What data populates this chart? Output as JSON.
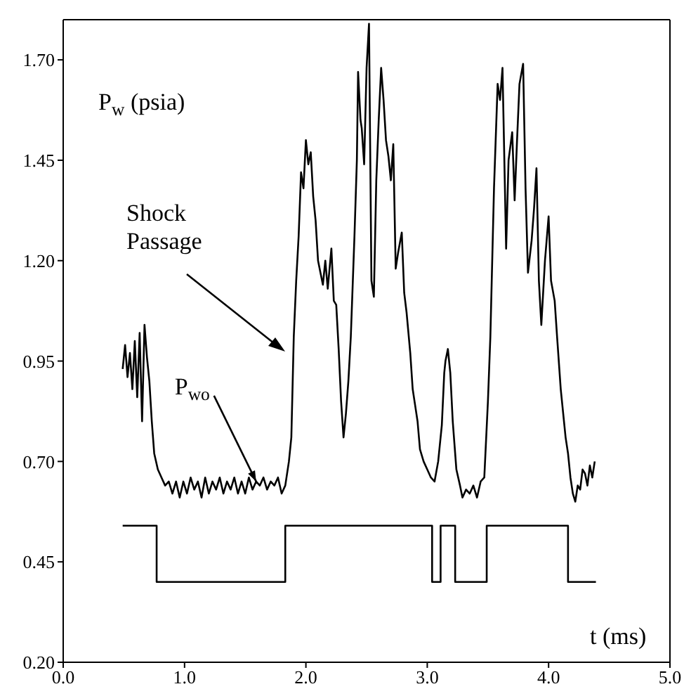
{
  "chart_data": {
    "type": "line",
    "xlabel": "t (ms)",
    "ylabel": "P$_{w}$ (psia)",
    "xlim": [
      0,
      5
    ],
    "ylim": [
      0.2,
      1.8
    ],
    "xticks": [
      {
        "value": 0,
        "label": "0.0"
      },
      {
        "value": 1,
        "label": "1.0"
      },
      {
        "value": 2,
        "label": "2.0"
      },
      {
        "value": 3,
        "label": "3.0"
      },
      {
        "value": 4,
        "label": "4.0"
      },
      {
        "value": 5,
        "label": "5.0"
      }
    ],
    "yticks": [
      {
        "value": 0.2,
        "label": "0.20"
      },
      {
        "value": 0.45,
        "label": "0.45"
      },
      {
        "value": 0.7,
        "label": "0.70"
      },
      {
        "value": 0.95,
        "label": "0.95"
      },
      {
        "value": 1.2,
        "label": "1.20"
      },
      {
        "value": 1.45,
        "label": "1.45"
      },
      {
        "value": 1.7,
        "label": "1.70"
      }
    ],
    "grid": false,
    "marker": "none",
    "line_style": "solid",
    "annotations": [
      "Shock Passage",
      {
        "text": "P$_{wo}$",
        "x": 1.59,
        "y": 0.65
      }
    ],
    "series": [
      {
        "type": "line",
        "color": "#000000",
        "x": [
          0.49,
          0.51,
          0.53,
          0.55,
          0.57,
          0.59,
          0.61,
          0.63,
          0.65,
          0.67,
          0.69,
          0.71,
          0.73,
          0.75,
          0.78,
          0.81,
          0.84,
          0.87,
          0.9,
          0.93,
          0.96,
          0.99,
          1.02,
          1.05,
          1.08,
          1.11,
          1.14,
          1.17,
          1.2,
          1.23,
          1.26,
          1.29,
          1.32,
          1.35,
          1.38,
          1.41,
          1.44,
          1.47,
          1.5,
          1.53,
          1.56,
          1.59,
          1.62,
          1.65,
          1.68,
          1.71,
          1.74,
          1.77,
          1.8,
          1.83,
          1.86,
          1.88,
          1.9,
          1.92,
          1.94,
          1.96,
          1.98,
          2.0,
          2.02,
          2.04,
          2.06,
          2.08,
          2.1,
          2.12,
          2.14,
          2.16,
          2.18,
          2.21,
          2.23,
          2.25,
          2.27,
          2.29,
          2.31,
          2.33,
          2.35,
          2.37,
          2.4,
          2.42,
          2.43,
          2.45,
          2.46,
          2.48,
          2.5,
          2.52,
          2.54,
          2.56,
          2.58,
          2.6,
          2.62,
          2.64,
          2.66,
          2.68,
          2.7,
          2.72,
          2.74,
          2.76,
          2.79,
          2.81,
          2.83,
          2.86,
          2.88,
          2.9,
          2.92,
          2.94,
          2.97,
          3.0,
          3.03,
          3.06,
          3.09,
          3.12,
          3.14,
          3.15,
          3.17,
          3.19,
          3.21,
          3.24,
          3.27,
          3.29,
          3.32,
          3.35,
          3.38,
          3.41,
          3.44,
          3.47,
          3.5,
          3.52,
          3.55,
          3.58,
          3.6,
          3.62,
          3.65,
          3.67,
          3.7,
          3.72,
          3.74,
          3.76,
          3.79,
          3.81,
          3.83,
          3.86,
          3.88,
          3.9,
          3.92,
          3.94,
          3.97,
          4.0,
          4.02,
          4.05,
          4.07,
          4.1,
          4.12,
          4.14,
          4.16,
          4.18,
          4.2,
          4.22,
          4.24,
          4.26,
          4.28,
          4.3,
          4.32,
          4.34,
          4.36,
          4.38
        ],
        "values": [
          0.93,
          0.99,
          0.91,
          0.97,
          0.88,
          1.0,
          0.86,
          1.02,
          0.8,
          1.04,
          0.96,
          0.9,
          0.8,
          0.72,
          0.68,
          0.66,
          0.64,
          0.65,
          0.62,
          0.65,
          0.61,
          0.65,
          0.62,
          0.66,
          0.63,
          0.65,
          0.61,
          0.66,
          0.62,
          0.65,
          0.63,
          0.66,
          0.62,
          0.65,
          0.63,
          0.66,
          0.62,
          0.65,
          0.62,
          0.66,
          0.63,
          0.65,
          0.64,
          0.66,
          0.63,
          0.65,
          0.64,
          0.66,
          0.62,
          0.64,
          0.7,
          0.76,
          1.01,
          1.15,
          1.26,
          1.42,
          1.38,
          1.5,
          1.44,
          1.47,
          1.36,
          1.3,
          1.2,
          1.17,
          1.14,
          1.2,
          1.13,
          1.23,
          1.1,
          1.09,
          0.98,
          0.85,
          0.76,
          0.82,
          0.9,
          1.01,
          1.26,
          1.45,
          1.67,
          1.55,
          1.53,
          1.44,
          1.68,
          1.79,
          1.15,
          1.11,
          1.4,
          1.55,
          1.68,
          1.6,
          1.5,
          1.46,
          1.4,
          1.49,
          1.18,
          1.22,
          1.27,
          1.12,
          1.07,
          0.97,
          0.88,
          0.84,
          0.8,
          0.73,
          0.7,
          0.68,
          0.66,
          0.65,
          0.7,
          0.79,
          0.92,
          0.95,
          0.98,
          0.92,
          0.8,
          0.68,
          0.64,
          0.61,
          0.63,
          0.62,
          0.64,
          0.61,
          0.65,
          0.66,
          0.85,
          1.01,
          1.38,
          1.64,
          1.6,
          1.68,
          1.23,
          1.45,
          1.52,
          1.35,
          1.5,
          1.64,
          1.69,
          1.38,
          1.17,
          1.25,
          1.33,
          1.43,
          1.15,
          1.04,
          1.2,
          1.31,
          1.15,
          1.1,
          1.01,
          0.88,
          0.82,
          0.76,
          0.72,
          0.66,
          0.62,
          0.6,
          0.64,
          0.63,
          0.68,
          0.67,
          0.64,
          0.69,
          0.66,
          0.7
        ]
      },
      {
        "type": "step",
        "color": "#000000",
        "x": [
          0.49,
          0.77,
          1.83,
          3.04,
          3.11,
          3.23,
          3.49,
          4.16,
          4.39
        ],
        "values": [
          0.54,
          0.4,
          0.54,
          0.4,
          0.54,
          0.4,
          0.54,
          0.4,
          0.4
        ]
      }
    ]
  }
}
